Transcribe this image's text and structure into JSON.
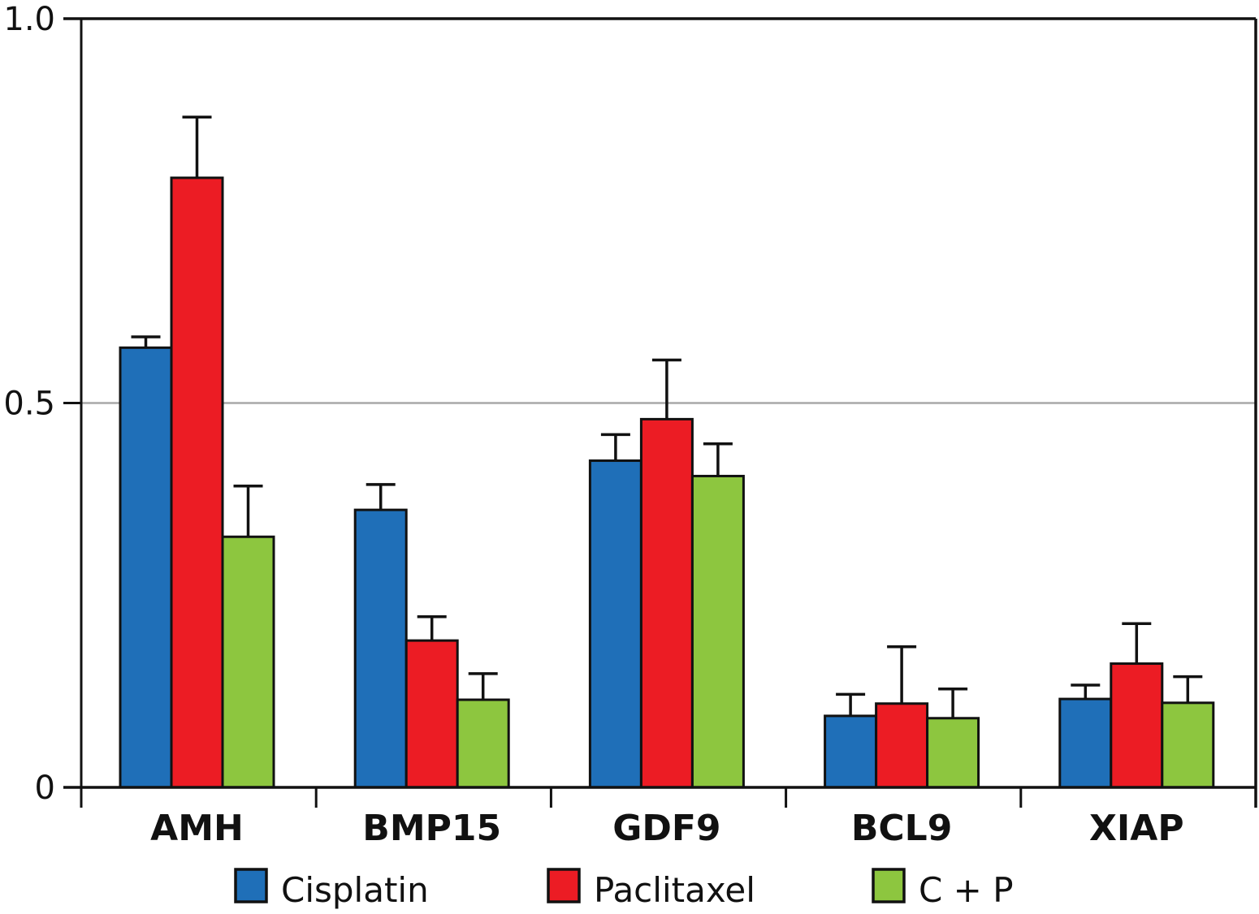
{
  "chart_data": {
    "type": "bar",
    "title": "",
    "xlabel": "",
    "ylabel": "",
    "ylim": [
      0,
      1.0
    ],
    "yticks": [
      0,
      0.5,
      1.0
    ],
    "ytick_labels": [
      "0",
      "0.5",
      "1.0"
    ],
    "grid": "horizontal line at 0.5",
    "categories": [
      "AMH",
      "BMP15",
      "GDF9",
      "BCL9",
      "XIAP"
    ],
    "series": [
      {
        "name": "Cisplatin",
        "color": "#1f6fb8",
        "values": [
          0.572,
          0.361,
          0.425,
          0.093,
          0.115
        ],
        "error_upper": [
          0.586,
          0.394,
          0.459,
          0.121,
          0.133
        ]
      },
      {
        "name": "Paclitaxel",
        "color": "#ec1c24",
        "values": [
          0.793,
          0.191,
          0.479,
          0.109,
          0.161
        ],
        "error_upper": [
          0.872,
          0.222,
          0.556,
          0.183,
          0.213
        ]
      },
      {
        "name": "C + P",
        "color": "#8dc63f",
        "values": [
          0.326,
          0.114,
          0.405,
          0.09,
          0.11
        ],
        "error_upper": [
          0.392,
          0.148,
          0.447,
          0.128,
          0.144
        ]
      }
    ],
    "legend": {
      "placement": "bottom",
      "entries": [
        "Cisplatin",
        "Paclitaxel",
        "C + P"
      ]
    }
  }
}
